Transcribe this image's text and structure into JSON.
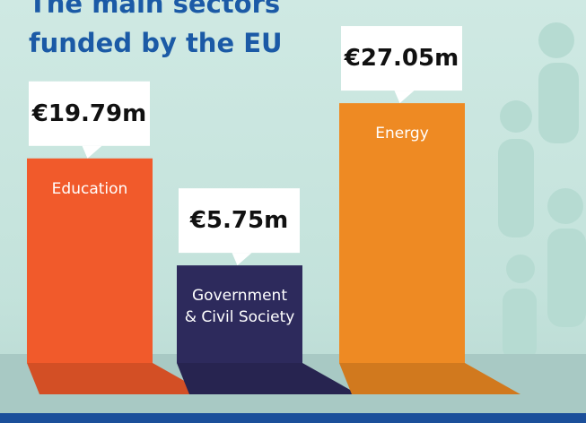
{
  "chart_data": {
    "type": "bar",
    "title": "The main sectors funded by the EU",
    "categories": [
      "Education",
      "Government & Civil Society",
      "Energy"
    ],
    "values": [
      19.79,
      5.75,
      27.05
    ],
    "value_labels": [
      "€19.79m",
      "€5.75m",
      "€27.05m"
    ],
    "colors": [
      "#f15a2b",
      "#2d2a5c",
      "#ee8a23"
    ]
  }
}
